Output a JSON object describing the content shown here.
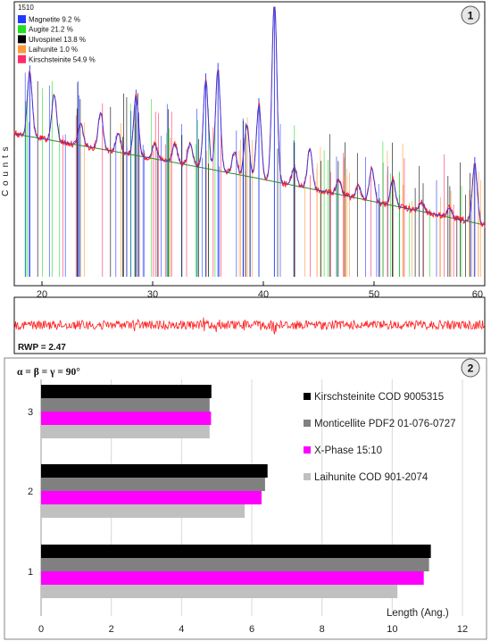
{
  "chart_data": [
    {
      "type": "line",
      "panel_badge": "1",
      "legend_header": "1510",
      "ylabel": "C o u n t s",
      "xlim": [
        17.5,
        60
      ],
      "x_ticks": [
        20,
        30,
        40,
        50,
        60
      ],
      "phases": [
        {
          "name": "Magnetite 9.2 %",
          "color": "#1f3bff"
        },
        {
          "name": "Augite 21.2 %",
          "color": "#22e022"
        },
        {
          "name": "Ulvospinel 13.8 %",
          "color": "#000000"
        },
        {
          "name": "Laihunite 1.0 %",
          "color": "#ff9a3c"
        },
        {
          "name": "Kirschsteinite 54.9 %",
          "color": "#ff2a6a"
        }
      ],
      "peaks": [
        {
          "x": 18.9,
          "h": 0.35
        },
        {
          "x": 21.1,
          "h": 0.25
        },
        {
          "x": 23.5,
          "h": 0.12
        },
        {
          "x": 25.3,
          "h": 0.2
        },
        {
          "x": 26.9,
          "h": 0.1
        },
        {
          "x": 28.5,
          "h": 0.32
        },
        {
          "x": 30.2,
          "h": 0.08
        },
        {
          "x": 32.0,
          "h": 0.1
        },
        {
          "x": 33.4,
          "h": 0.12
        },
        {
          "x": 34.8,
          "h": 0.48
        },
        {
          "x": 35.9,
          "h": 0.55
        },
        {
          "x": 37.4,
          "h": 0.12
        },
        {
          "x": 38.5,
          "h": 0.28
        },
        {
          "x": 39.6,
          "h": 0.4
        },
        {
          "x": 41.0,
          "h": 1.0
        },
        {
          "x": 42.8,
          "h": 0.1
        },
        {
          "x": 44.2,
          "h": 0.22
        },
        {
          "x": 46.8,
          "h": 0.08
        },
        {
          "x": 48.6,
          "h": 0.07
        },
        {
          "x": 49.8,
          "h": 0.18
        },
        {
          "x": 51.7,
          "h": 0.14
        },
        {
          "x": 54.3,
          "h": 0.05
        },
        {
          "x": 56.8,
          "h": 0.05
        },
        {
          "x": 59.1,
          "h": 0.32
        }
      ],
      "background_ratio": 0.45
    },
    {
      "type": "line",
      "label": "RWP = 2.47",
      "xlim": [
        17.5,
        60
      ]
    },
    {
      "type": "bar",
      "orientation": "horizontal",
      "panel_badge": "2",
      "annotation": "α = β = γ = 90°",
      "categories": [
        "1",
        "2",
        "3"
      ],
      "xlim": [
        0,
        12
      ],
      "x_ticks": [
        0,
        2,
        4,
        6,
        8,
        10,
        12
      ],
      "xlabel": "Length (Ang.)",
      "legend_position": "right",
      "series": [
        {
          "name": "Kirschsteinite COD 9005315",
          "color": "#000000",
          "values": [
            11.1,
            6.45,
            4.85
          ]
        },
        {
          "name": "Monticellite PDF2 01-076-0727",
          "color": "#808080",
          "values": [
            11.05,
            6.38,
            4.8
          ]
        },
        {
          "name": "X-Phase 15:10",
          "color": "#ff00ff",
          "values": [
            10.9,
            6.28,
            4.84
          ]
        },
        {
          "name": "Laihunite COD 901-2074",
          "color": "#c0c0c0",
          "values": [
            10.15,
            5.8,
            4.8
          ]
        }
      ]
    }
  ]
}
